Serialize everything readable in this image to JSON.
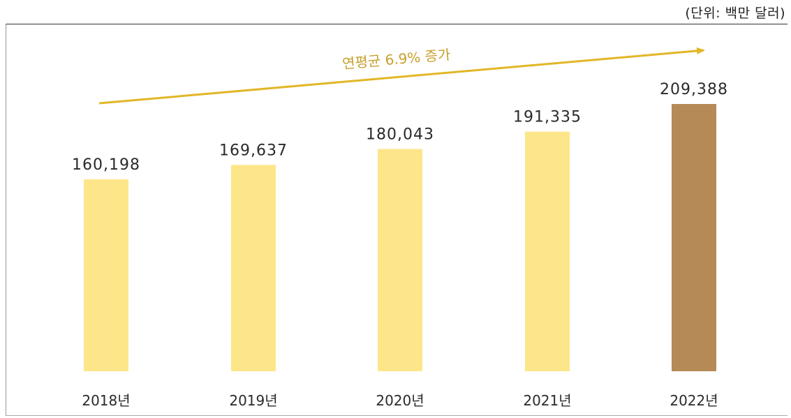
{
  "unit_label": "(단위: 백만 달러)",
  "trend_label": "연평균 6.9% 증가",
  "colors": {
    "bar": "#fde68a",
    "bar_highlight": "#b58a57",
    "trend_arrow": "#e2b626",
    "trend_text": "#c8a02c"
  },
  "chart_data": {
    "type": "bar",
    "categories": [
      "2018년",
      "2019년",
      "2020년",
      "2021년",
      "2022년"
    ],
    "values": [
      160198,
      169637,
      180043,
      191335,
      209388
    ],
    "value_labels": [
      "160,198",
      "169,637",
      "180,043",
      "191,335",
      "209,388"
    ],
    "highlight_index": 4,
    "annotation": "연평균 6.9% 증가",
    "unit": "(단위: 백만 달러)",
    "grid": false,
    "legend": "none"
  }
}
